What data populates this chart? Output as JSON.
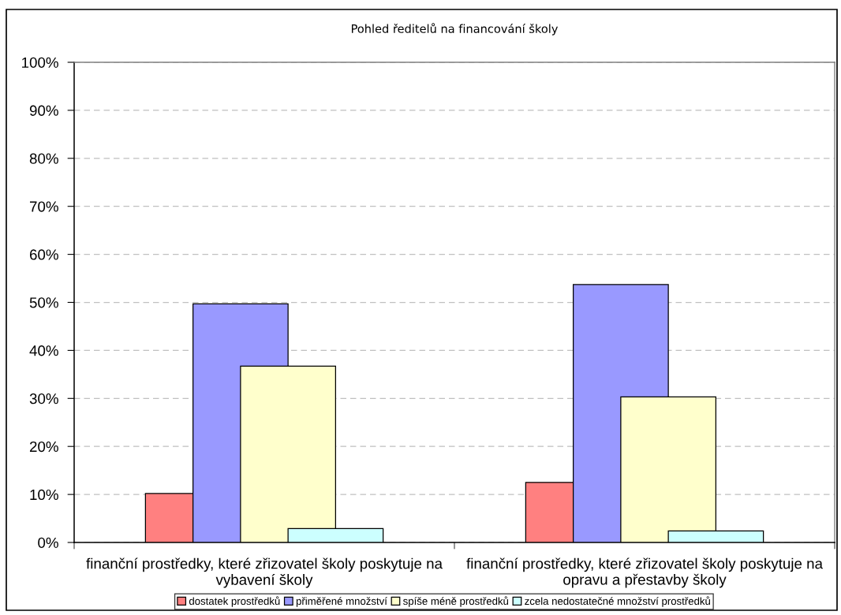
{
  "chart_data": {
    "type": "bar",
    "title": "Pohled ředitelů na financování školy",
    "categories": [
      "finanční prostředky, které zřizovatel školy poskytuje na\nvybavení školy",
      "finanční prostředky, které zřizovatel školy poskytuje na\nopravu a přestavby školy"
    ],
    "series": [
      {
        "name": "dostatek prostředků",
        "color": "#ff8080",
        "values": [
          10.2,
          12.5
        ]
      },
      {
        "name": "přiměřené množství",
        "color": "#9999ff",
        "values": [
          49.7,
          53.7
        ]
      },
      {
        "name": "spíše méně prostředků",
        "color": "#ffffcc",
        "values": [
          36.7,
          30.3
        ]
      },
      {
        "name": "zcela nedostatečné množství prostředků",
        "color": "#ccffff",
        "values": [
          2.9,
          2.4
        ]
      }
    ],
    "ylim": [
      0,
      100
    ],
    "yticks": [
      {
        "value": 0,
        "label": "0%"
      },
      {
        "value": 10,
        "label": "10%"
      },
      {
        "value": 20,
        "label": "20%"
      },
      {
        "value": 30,
        "label": "30%"
      },
      {
        "value": 40,
        "label": "40%"
      },
      {
        "value": 50,
        "label": "50%"
      },
      {
        "value": 60,
        "label": "60%"
      },
      {
        "value": 70,
        "label": "70%"
      },
      {
        "value": 80,
        "label": "80%"
      },
      {
        "value": 90,
        "label": "90%"
      },
      {
        "value": 100,
        "label": "100%"
      }
    ],
    "grid": "y",
    "legend": "bottom"
  }
}
